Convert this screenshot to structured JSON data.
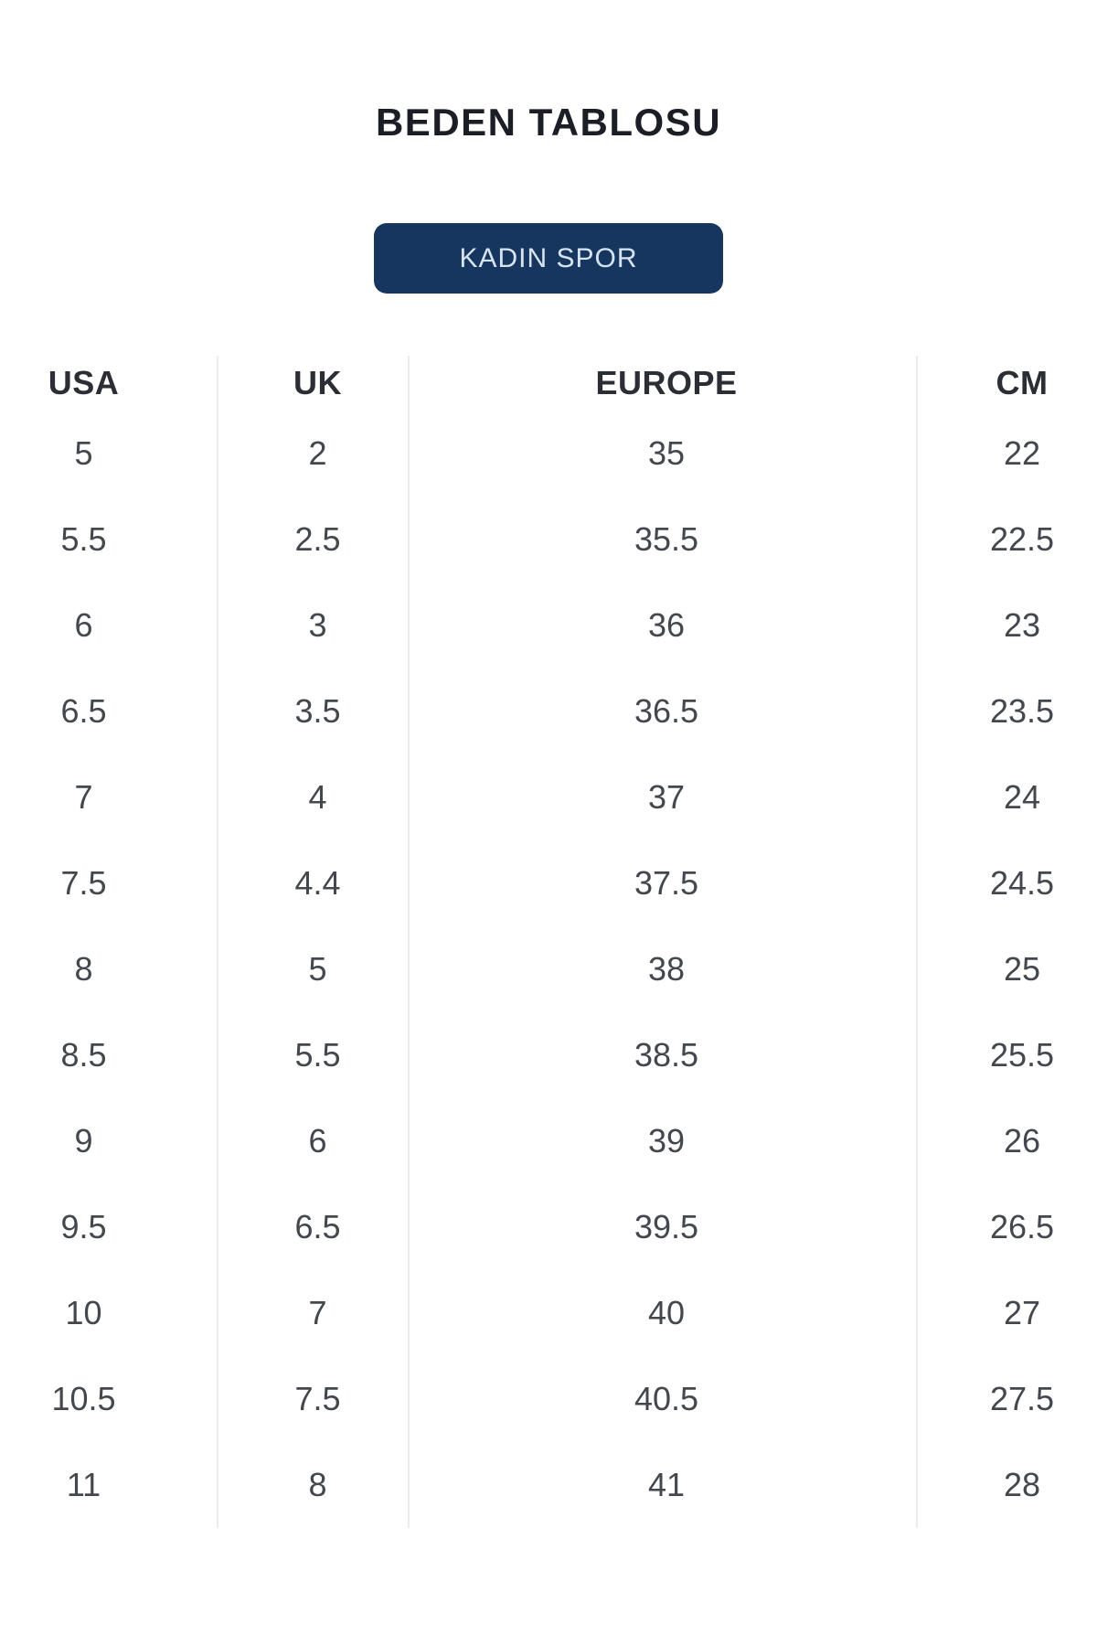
{
  "page": {
    "title": "BEDEN TABLOSU"
  },
  "category_button": {
    "label": "KADIN SPOR"
  },
  "colors": {
    "title_text": "#1c1e26",
    "button_bg": "#17365f",
    "button_text": "#d6e4f2",
    "header_text": "#2b2e35",
    "cell_text": "#43474e",
    "divider": "#ececec"
  },
  "table": {
    "columns": [
      "USA",
      "UK",
      "EUROPE",
      "CM"
    ],
    "rows": [
      [
        "5",
        "2",
        "35",
        "22"
      ],
      [
        "5.5",
        "2.5",
        "35.5",
        "22.5"
      ],
      [
        "6",
        "3",
        "36",
        "23"
      ],
      [
        "6.5",
        "3.5",
        "36.5",
        "23.5"
      ],
      [
        "7",
        "4",
        "37",
        "24"
      ],
      [
        "7.5",
        "4.4",
        "37.5",
        "24.5"
      ],
      [
        "8",
        "5",
        "38",
        "25"
      ],
      [
        "8.5",
        "5.5",
        "38.5",
        "25.5"
      ],
      [
        "9",
        "6",
        "39",
        "26"
      ],
      [
        "9.5",
        "6.5",
        "39.5",
        "26.5"
      ],
      [
        "10",
        "7",
        "40",
        "27"
      ],
      [
        "10.5",
        "7.5",
        "40.5",
        "27.5"
      ],
      [
        "11",
        "8",
        "41",
        "28"
      ]
    ]
  }
}
